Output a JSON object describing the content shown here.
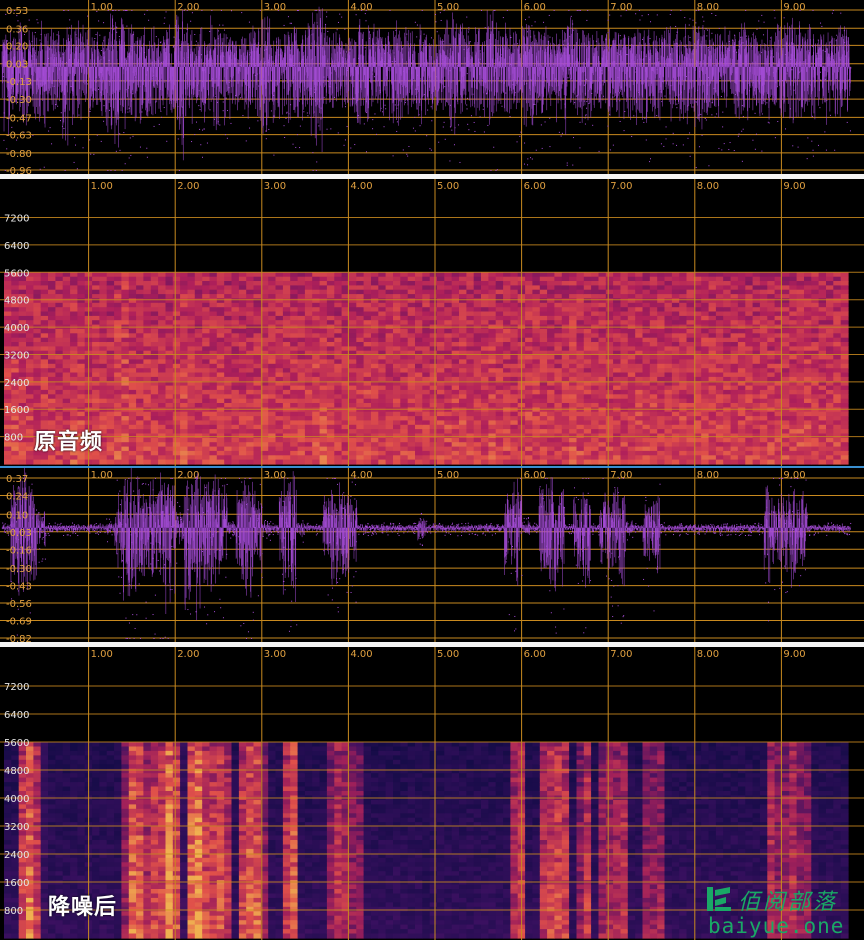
{
  "chart_data": [
    {
      "type": "area",
      "title": "",
      "panel": "waveform-original",
      "x_ticks": [
        "1.00",
        "2.00",
        "3.00",
        "4.00",
        "5.00",
        "6.00",
        "7.00",
        "8.00",
        "9.00"
      ],
      "y_ticks": [
        "0.53",
        "0.36",
        "0.20",
        "0.03",
        "-0.13",
        "-0.30",
        "-0.47",
        "-0.63",
        "-0.80",
        "-0.96"
      ],
      "xlim": [
        0,
        9.8
      ],
      "ylim": [
        -0.96,
        0.53
      ],
      "color": "#a64dd8",
      "envelope": [
        0.38,
        0.3,
        0.32,
        0.28,
        0.34,
        0.3,
        0.26,
        0.42,
        0.36,
        0.3,
        0.32,
        0.28,
        0.46,
        0.5,
        0.34,
        0.3,
        0.32,
        0.28,
        0.26,
        0.32,
        0.48,
        0.34,
        0.28,
        0.3,
        0.36,
        0.3,
        0.28,
        0.26,
        0.3,
        0.32,
        0.36,
        0.3,
        0.28,
        0.34,
        0.3,
        0.4,
        0.48,
        0.32,
        0.28,
        0.26,
        0.3,
        0.36,
        0.32,
        0.28,
        0.3,
        0.34,
        0.3,
        0.28,
        0.32,
        0.3,
        0.3,
        0.34,
        0.38,
        0.3,
        0.28,
        0.32,
        0.42,
        0.34,
        0.3,
        0.28,
        0.36,
        0.34,
        0.3,
        0.28,
        0.3,
        0.4,
        0.34,
        0.3,
        0.28,
        0.32,
        0.3,
        0.28,
        0.3,
        0.34,
        0.32,
        0.3,
        0.28,
        0.3,
        0.34,
        0.3,
        0.36,
        0.34,
        0.3,
        0.28,
        0.3,
        0.32,
        0.3,
        0.28,
        0.3,
        0.32,
        0.3,
        0.34,
        0.36,
        0.3,
        0.28,
        0.3,
        0.32,
        0.3
      ]
    },
    {
      "type": "heatmap",
      "title": "",
      "panel": "spectrogram-original",
      "x_ticks": [
        "1.00",
        "2.00",
        "3.00",
        "4.00",
        "5.00",
        "6.00",
        "7.00",
        "8.00",
        "9.00"
      ],
      "y_ticks": [
        "7200",
        "6400",
        "5600",
        "4800",
        "4000",
        "3200",
        "2400",
        "1600",
        "800"
      ],
      "xlim": [
        0,
        9.8
      ],
      "ylim": [
        0,
        7800
      ],
      "max_freq_shown": 5600,
      "colormap": [
        "#1a0a4a",
        "#5a1060",
        "#b0205a",
        "#e0504a",
        "#f0b050"
      ]
    },
    {
      "type": "area",
      "title": "",
      "panel": "waveform-denoised",
      "x_ticks": [
        "1.00",
        "2.00",
        "3.00",
        "4.00",
        "5.00",
        "6.00",
        "7.00",
        "8.00",
        "9.00"
      ],
      "y_ticks": [
        "0.37",
        "0.24",
        "0.10",
        "-0.03",
        "-0.16",
        "-0.30",
        "-0.43",
        "-0.56",
        "-0.69",
        "-0.82"
      ],
      "xlim": [
        0,
        9.8
      ],
      "ylim": [
        -0.82,
        0.37
      ],
      "color": "#a64dd8",
      "envelope": [
        0.02,
        0.3,
        0.36,
        0.28,
        0.1,
        0.02,
        0.02,
        0.02,
        0.02,
        0.02,
        0.02,
        0.02,
        0.04,
        0.2,
        0.36,
        0.34,
        0.24,
        0.3,
        0.4,
        0.32,
        0.1,
        0.36,
        0.42,
        0.3,
        0.32,
        0.26,
        0.04,
        0.3,
        0.34,
        0.2,
        0.04,
        0.02,
        0.28,
        0.34,
        0.04,
        0.02,
        0.02,
        0.2,
        0.26,
        0.24,
        0.2,
        0.02,
        0.02,
        0.02,
        0.02,
        0.02,
        0.02,
        0.02,
        0.06,
        0.02,
        0.02,
        0.02,
        0.02,
        0.02,
        0.02,
        0.02,
        0.02,
        0.02,
        0.24,
        0.28,
        0.04,
        0.02,
        0.26,
        0.3,
        0.28,
        0.02,
        0.2,
        0.28,
        0.02,
        0.22,
        0.24,
        0.26,
        0.04,
        0.02,
        0.2,
        0.22,
        0.02,
        0.02,
        0.02,
        0.02,
        0.02,
        0.02,
        0.02,
        0.02,
        0.02,
        0.02,
        0.02,
        0.02,
        0.26,
        0.2,
        0.22,
        0.26,
        0.2,
        0.02,
        0.02,
        0.02,
        0.02,
        0.02
      ]
    },
    {
      "type": "heatmap",
      "title": "",
      "panel": "spectrogram-denoised",
      "x_ticks": [
        "1.00",
        "2.00",
        "3.00",
        "4.00",
        "5.00",
        "6.00",
        "7.00",
        "8.00",
        "9.00"
      ],
      "y_ticks": [
        "7200",
        "6400",
        "5600",
        "4800",
        "4000",
        "3200",
        "2400",
        "1600",
        "800"
      ],
      "xlim": [
        0,
        9.8
      ],
      "ylim": [
        0,
        7800
      ],
      "max_freq_shown": 5600,
      "colormap": [
        "#0a0a40",
        "#3a1060",
        "#a0205a",
        "#e0504a",
        "#f0b050"
      ]
    }
  ],
  "labels": {
    "original": "原音频",
    "denoised": "降噪后"
  },
  "watermark": {
    "cn": "佰阅部落",
    "url": "baiyue.one"
  },
  "colors": {
    "grid": "#c98a1f",
    "tick_label": "#e0a040",
    "background": "#000000"
  }
}
